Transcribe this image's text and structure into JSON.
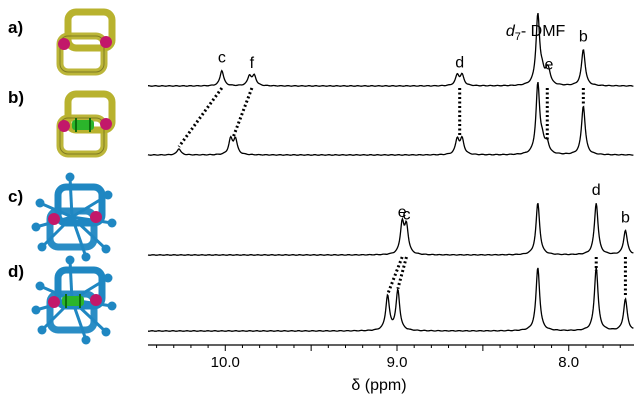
{
  "chart_data": {
    "type": "line",
    "title": "",
    "xlabel": "δ (ppm)",
    "xlim": [
      10.45,
      7.62
    ],
    "x_reversed": true,
    "xticks": [
      {
        "value": 10.0,
        "label": "10.0"
      },
      {
        "value": 9.0,
        "label": "9.0"
      },
      {
        "value": 8.0,
        "label": "8.0"
      }
    ],
    "solvent_label": {
      "italic": "d",
      "subscript": "7",
      "rest": "- DMF",
      "x": 8.18
    },
    "panel_labels": [
      "a)",
      "b)",
      "c)",
      "d)"
    ],
    "series": [
      {
        "panel": "a)",
        "peaks": [
          {
            "x": 10.02,
            "height": 0.22,
            "label": "c"
          },
          {
            "x": 9.845,
            "height": 0.14,
            "label": "f",
            "pair": true
          },
          {
            "x": 8.635,
            "height": 0.15,
            "label": "d",
            "pair": true
          },
          {
            "x": 8.18,
            "height": 1.0
          },
          {
            "x": 8.14,
            "height": 0.15,
            "pair": true
          },
          {
            "x": 8.115,
            "height": 0.12,
            "label": "e"
          },
          {
            "x": 7.915,
            "height": 0.52,
            "label": "b"
          }
        ]
      },
      {
        "panel": "b)",
        "peaks": [
          {
            "x": 10.27,
            "height": 0.09
          },
          {
            "x": 9.955,
            "height": 0.22,
            "pair": true
          },
          {
            "x": 8.635,
            "height": 0.22,
            "pair": true
          },
          {
            "x": 8.18,
            "height": 1.0
          },
          {
            "x": 8.14,
            "height": 0.16,
            "pair": true
          },
          {
            "x": 7.915,
            "height": 0.7
          }
        ]
      },
      {
        "panel": "c)",
        "peaks": [
          {
            "x": 8.97,
            "height": 0.42,
            "label": "e"
          },
          {
            "x": 8.945,
            "height": 0.38,
            "label": "c"
          },
          {
            "x": 8.18,
            "height": 0.72
          },
          {
            "x": 7.84,
            "height": 0.72,
            "label": "d"
          },
          {
            "x": 7.67,
            "height": 0.34,
            "label": "b"
          }
        ]
      },
      {
        "panel": "d)",
        "peaks": [
          {
            "x": 9.055,
            "height": 0.48
          },
          {
            "x": 8.995,
            "height": 0.56
          },
          {
            "x": 8.18,
            "height": 0.88
          },
          {
            "x": 7.84,
            "height": 0.88
          },
          {
            "x": 7.67,
            "height": 0.44
          }
        ]
      }
    ],
    "correlations": [
      {
        "from": {
          "spectrum": 0,
          "x": 10.02
        },
        "to": {
          "spectrum": 1,
          "x": 10.27
        }
      },
      {
        "from": {
          "spectrum": 0,
          "x": 9.845
        },
        "to": {
          "spectrum": 1,
          "x": 9.955
        }
      },
      {
        "from": {
          "spectrum": 0,
          "x": 8.635
        },
        "to": {
          "spectrum": 1,
          "x": 8.635
        }
      },
      {
        "from": {
          "spectrum": 0,
          "x": 8.125
        },
        "to": {
          "spectrum": 1,
          "x": 8.125
        }
      },
      {
        "from": {
          "spectrum": 0,
          "x": 7.915
        },
        "to": {
          "spectrum": 1,
          "x": 7.915
        }
      },
      {
        "from": {
          "spectrum": 2,
          "x": 8.97
        },
        "to": {
          "spectrum": 3,
          "x": 9.055
        }
      },
      {
        "from": {
          "spectrum": 2,
          "x": 8.945
        },
        "to": {
          "spectrum": 3,
          "x": 8.995
        }
      },
      {
        "from": {
          "spectrum": 2,
          "x": 7.84
        },
        "to": {
          "spectrum": 3,
          "x": 7.84
        }
      },
      {
        "from": {
          "spectrum": 2,
          "x": 7.67
        },
        "to": {
          "spectrum": 3,
          "x": 7.67
        }
      }
    ],
    "structure_images": [
      {
        "panel": "a)",
        "kind": "cage",
        "color": "#b8b22e",
        "guest": false
      },
      {
        "panel": "b)",
        "kind": "cage",
        "color": "#b8b22e",
        "guest": true
      },
      {
        "panel": "c)",
        "kind": "cage-with-arms",
        "color": "#1f87c2",
        "guest": false
      },
      {
        "panel": "d)",
        "kind": "cage-with-arms",
        "color": "#1f87c2",
        "guest": true
      }
    ],
    "colors": {
      "spectrum": "#000000",
      "cage_yellow": "#b8b22e",
      "cage_blue": "#1f87c2",
      "node_pink": "#c2186a",
      "guest_green": "#2bb52b"
    },
    "grid": false,
    "legend": "none"
  }
}
